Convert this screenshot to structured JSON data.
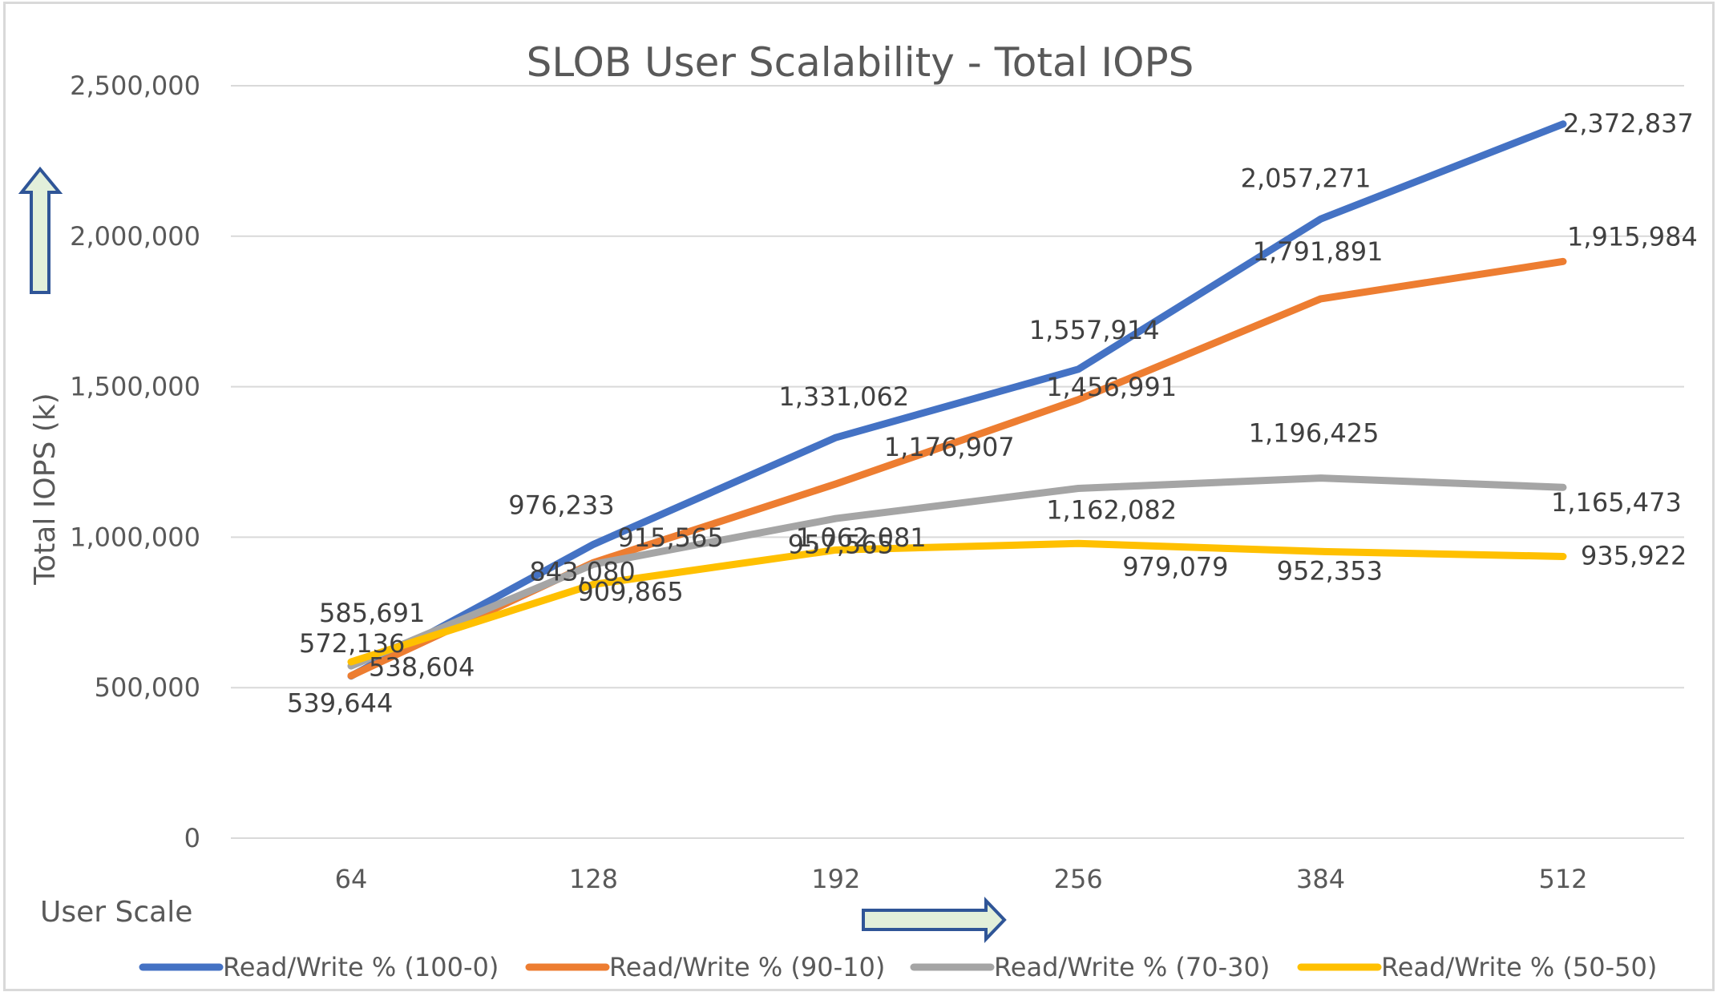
{
  "chart_data": {
    "type": "line",
    "title": "SLOB User Scalability - Total IOPS",
    "xlabel": "User Scale",
    "ylabel": "Total IOPS (k)",
    "categories": [
      "64",
      "128",
      "192",
      "256",
      "384",
      "512"
    ],
    "ylim": [
      0,
      2500000
    ],
    "yticks": [
      0,
      500000,
      1000000,
      1500000,
      2000000,
      2500000
    ],
    "ytick_labels": [
      "0",
      "500,000",
      "1,000,000",
      "1,500,000",
      "2,000,000",
      "2,500,000"
    ],
    "grid": true,
    "legend_position": "bottom",
    "series": [
      {
        "name": "Read/Write % (100-0)",
        "color": "#4472c4",
        "values": [
          538604,
          976233,
          1331062,
          1557914,
          2057271,
          2372837
        ],
        "labels": [
          "538,604",
          "976,233",
          "1,331,062",
          "1,557,914",
          "2,057,271",
          "2,372,837"
        ]
      },
      {
        "name": "Read/Write % (90-10)",
        "color": "#ed7d31",
        "values": [
          539644,
          915565,
          1176907,
          1456991,
          1791891,
          1915984
        ],
        "labels": [
          "539,644",
          "915,565",
          "1,176,907",
          "1,456,991",
          "1,791,891",
          "1,915,984"
        ]
      },
      {
        "name": "Read/Write % (70-30)",
        "color": "#a5a5a5",
        "values": [
          572136,
          909865,
          1062081,
          1162082,
          1196425,
          1165473
        ],
        "labels": [
          "572,136",
          "909,865",
          "1,062,081",
          "1,162,082",
          "1,196,425",
          "1,165,473"
        ]
      },
      {
        "name": "Read/Write % (50-50)",
        "color": "#ffc000",
        "values": [
          585691,
          843080,
          957565,
          979079,
          952353,
          935922
        ],
        "labels": [
          "585,691",
          "843,080",
          "957,565",
          "979,079",
          "952,353",
          "935,922"
        ]
      }
    ],
    "annotations": [
      "up-arrow beside y-axis",
      "right-arrow under x-axis"
    ]
  },
  "colors": {
    "arrow_fill": "#e2efda",
    "arrow_stroke": "#2f5597",
    "grid": "#d9d9d9"
  }
}
